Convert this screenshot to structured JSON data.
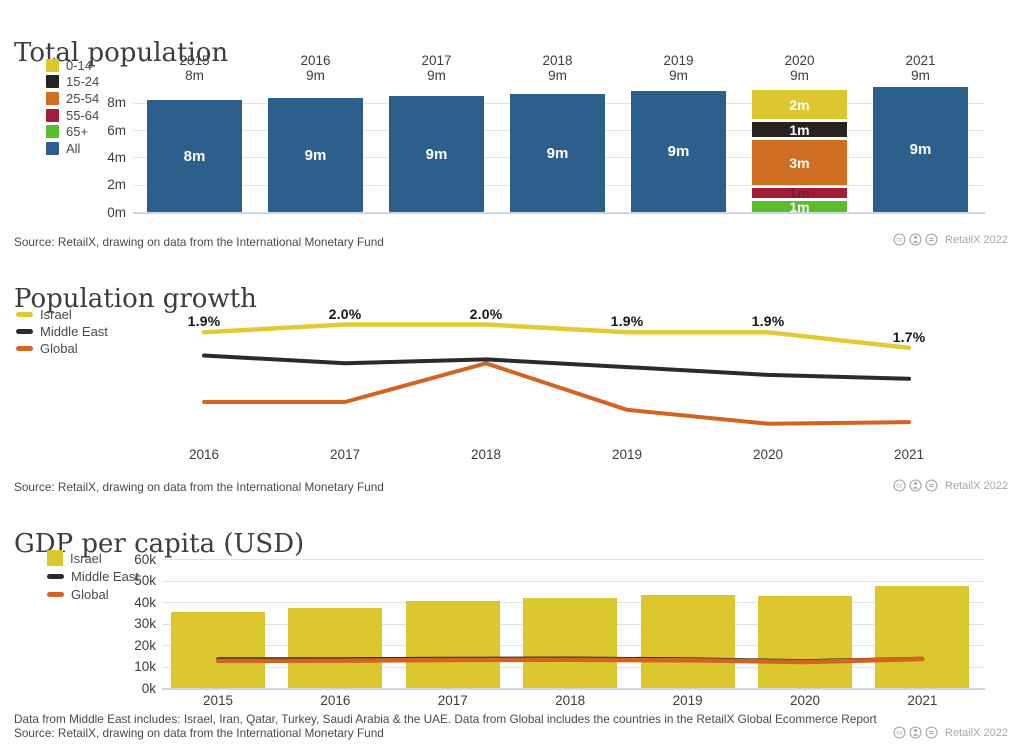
{
  "colors": {
    "yellow": "#dcc72f",
    "black": "#26221f",
    "orange": "#d06e23",
    "red": "#a31c3a",
    "green": "#5abd2d",
    "blue": "#2d5f8c",
    "line_yellow": "#e2ca33",
    "line_black": "#2b2b2b",
    "line_orange": "#d2641f",
    "grid": "#e3e3e3",
    "baseline": "#ccd5e3",
    "title_text": "#3d3d3d",
    "body_text": "#4a4a4a",
    "muted_text": "#a8a8a8"
  },
  "license": {
    "brand": "RetailX 2022"
  },
  "chart1": {
    "title": "Total population",
    "source": "Source: RetailX, drawing on data from the International Monetary Fund",
    "legend": [
      {
        "label": "0-14",
        "color_key": "yellow",
        "shape": "square"
      },
      {
        "label": "15-24",
        "color_key": "black",
        "shape": "square"
      },
      {
        "label": "25-54",
        "color_key": "orange",
        "shape": "square"
      },
      {
        "label": "55-64",
        "color_key": "red",
        "shape": "square"
      },
      {
        "label": "65+",
        "color_key": "green",
        "shape": "square"
      },
      {
        "label": "All",
        "color_key": "blue",
        "shape": "square"
      }
    ]
  },
  "chart2": {
    "title": "Population growth",
    "source": "Source: RetailX, drawing on data from the International Monetary Fund",
    "legend": [
      {
        "label": "Israel",
        "color_key": "line_yellow",
        "shape": "line"
      },
      {
        "label": "Middle East",
        "color_key": "line_black",
        "shape": "line"
      },
      {
        "label": "Global",
        "color_key": "line_orange",
        "shape": "line"
      }
    ]
  },
  "chart3": {
    "title": "GDP per capita (USD)",
    "footnote": "Data from Middle East includes: Israel, Iran, Qatar, Turkey, Saudi Arabia & the UAE. Data from Global includes the countries in the RetailX Global Ecommerce Report",
    "source": "Source: RetailX, drawing on data from the International Monetary Fund",
    "legend": [
      {
        "label": "Israel",
        "color_key": "yellow",
        "shape": "square"
      },
      {
        "label": "Middle East",
        "color_key": "line_black",
        "shape": "line"
      },
      {
        "label": "Global",
        "color_key": "line_orange",
        "shape": "line"
      }
    ]
  },
  "chart_data": [
    {
      "type": "bar",
      "title": "Total population",
      "unit": "million people",
      "categories": [
        "2015",
        "2016",
        "2017",
        "2018",
        "2019",
        "2020",
        "2021"
      ],
      "totals_label": [
        "8m",
        "9m",
        "9m",
        "9m",
        "9m",
        "9m",
        "9m"
      ],
      "all_values_m": [
        8.2,
        8.35,
        8.5,
        8.65,
        8.85,
        9.0,
        9.15
      ],
      "bar_inner_labels": [
        "8m",
        "9m",
        "9m",
        "9m",
        "9m",
        null,
        "9m"
      ],
      "y_ticks": [
        "0m",
        "2m",
        "4m",
        "6m",
        "8m"
      ],
      "ylim_m": [
        0,
        8.2
      ],
      "grid": true,
      "stacked_year": "2020",
      "stacked_segments": [
        {
          "group": "0-14",
          "label": "2m",
          "value_m": 2.1,
          "color_key": "yellow",
          "label_hidden": false
        },
        {
          "group": "15-24",
          "label": "1m",
          "value_m": 1.1,
          "color_key": "black",
          "label_hidden": false
        },
        {
          "group": "25-54",
          "label": "3m",
          "value_m": 3.3,
          "color_key": "orange",
          "label_hidden": false
        },
        {
          "group": "55-64",
          "label": "1m",
          "value_m": 0.73,
          "color_key": "red",
          "label_hidden": true
        },
        {
          "group": "65+",
          "label": "1m",
          "value_m": 0.8,
          "color_key": "green",
          "label_hidden": false
        }
      ]
    },
    {
      "type": "line",
      "title": "Population growth",
      "unit": "percent",
      "x": [
        "2016",
        "2017",
        "2018",
        "2019",
        "2020",
        "2021"
      ],
      "series": [
        {
          "name": "Israel",
          "color_key": "line_yellow",
          "values_pct": [
            1.9,
            2.0,
            2.0,
            1.9,
            1.9,
            1.7
          ],
          "point_labels": [
            "1.9%",
            "2.0%",
            "2.0%",
            "1.9%",
            "1.9%",
            "1.7%"
          ]
        },
        {
          "name": "Middle East",
          "color_key": "line_black",
          "values_pct": [
            1.6,
            1.5,
            1.55,
            1.45,
            1.35,
            1.3
          ]
        },
        {
          "name": "Global",
          "color_key": "line_orange",
          "values_pct": [
            1.0,
            1.0,
            1.5,
            0.9,
            0.72,
            0.74
          ]
        }
      ],
      "grid": false,
      "legend_position": "top-left"
    },
    {
      "type": "bar+line",
      "title": "GDP per capita (USD)",
      "unit": "thousand USD",
      "x": [
        "2015",
        "2016",
        "2017",
        "2018",
        "2019",
        "2020",
        "2021"
      ],
      "bar_series": {
        "name": "Israel",
        "color_key": "yellow",
        "values_k": [
          35.5,
          37.2,
          40.4,
          41.9,
          43.2,
          42.8,
          47.4
        ]
      },
      "line_series": [
        {
          "name": "Middle East",
          "color_key": "line_black",
          "values_k": [
            13.5,
            13.5,
            13.7,
            13.8,
            13.5,
            12.6,
            13.7
          ]
        },
        {
          "name": "Global",
          "color_key": "line_orange",
          "values_k": [
            12.6,
            12.7,
            13.0,
            13.1,
            12.9,
            12.1,
            13.5
          ]
        }
      ],
      "y_ticks": [
        "0k",
        "10k",
        "20k",
        "30k",
        "40k",
        "50k",
        "60k"
      ],
      "ylim_k": [
        0,
        60
      ],
      "grid": true
    }
  ]
}
